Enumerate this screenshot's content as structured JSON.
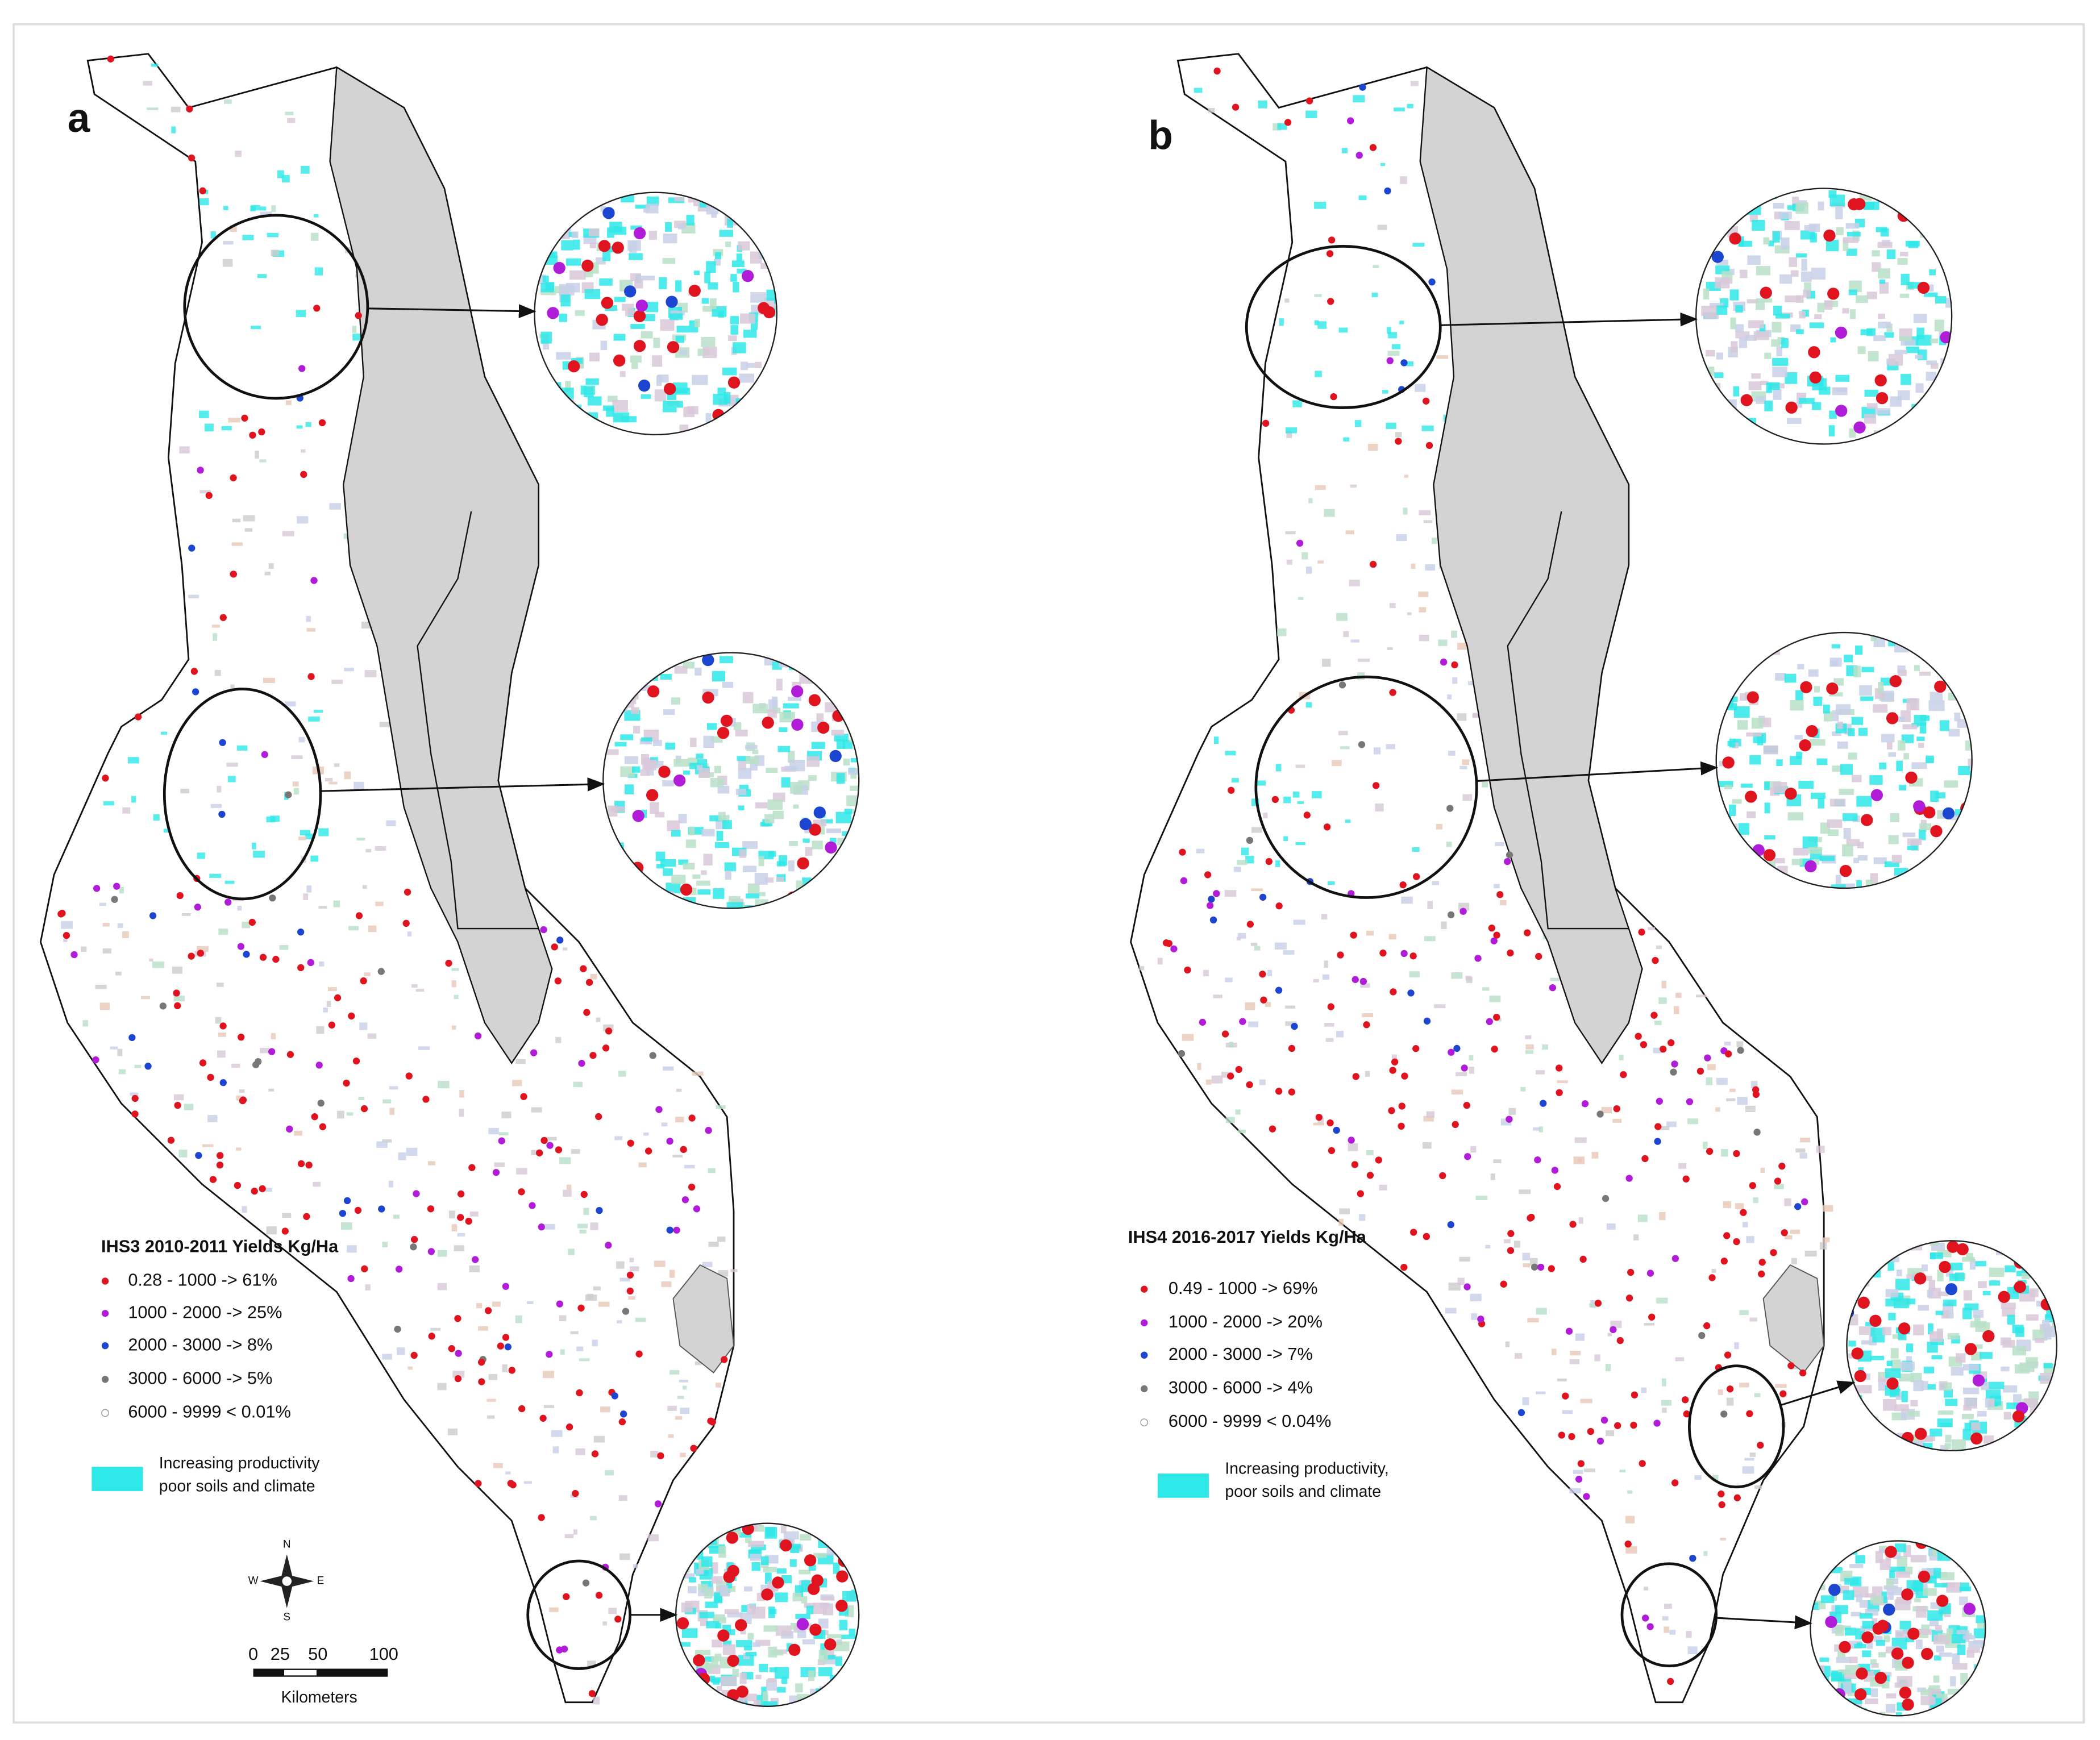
{
  "panels": [
    {
      "label": "a",
      "legend": {
        "title": "IHS3 2010-2011 Yields Kg/Ha",
        "items": [
          "0.28 - 1000 -> 61%",
          "1000 - 2000 -> 25%",
          "2000 - 3000 -> 8%",
          "3000 - 6000 -> 5%",
          "6000 - 9999  <  0.01%"
        ],
        "note": [
          "Increasing productivity",
          "poor soils and climate"
        ]
      }
    },
    {
      "label": "b",
      "legend": {
        "title": "IHS4 2016-2017 Yields Kg/Ha",
        "items": [
          "0.49 - 1000 -> 69%",
          "1000 - 2000 -> 20%",
          "2000 - 3000 -> 7%",
          "3000 - 6000 -> 4%",
          "6000 - 9999 < 0.04%"
        ],
        "note": [
          "Increasing productivity,",
          "poor soils and climate"
        ]
      }
    }
  ],
  "scale_bar": {
    "ticks": [
      "0",
      "25",
      "50",
      "100"
    ],
    "unit": "Kilometers"
  },
  "compass": {
    "n": "N",
    "s": "S",
    "e": "E",
    "w": "W"
  }
}
